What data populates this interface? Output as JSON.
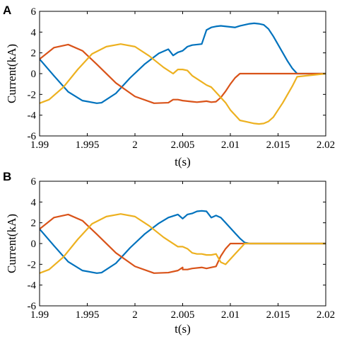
{
  "chart_data": [
    {
      "type": "line",
      "panel_label": "A",
      "xlabel": "t(s)",
      "ylabel": "Current(kA)",
      "xlim": [
        1.99,
        2.02
      ],
      "ylim": [
        -6,
        6
      ],
      "xticks": [
        1.99,
        1.995,
        2,
        2.005,
        2.01,
        2.015,
        2.02
      ],
      "xtick_labels": [
        "1.99",
        "1.995",
        "2",
        "2.005",
        "2.01",
        "2.015",
        "2.02"
      ],
      "yticks": [
        -6,
        -4,
        -2,
        0,
        2,
        4,
        6
      ],
      "ytick_labels": [
        "-6",
        "-4",
        "-2",
        "0",
        "2",
        "4",
        "6"
      ],
      "grid": false,
      "series": [
        {
          "color": "#0072BD",
          "x": [
            1.99,
            1.9915,
            1.993,
            1.9945,
            1.996,
            1.9965,
            1.998,
            1.9995,
            2.001,
            2.0025,
            2.0035,
            2.004,
            2.004,
            2.0045,
            2.005,
            2.0055,
            2.006,
            2.0065,
            2.007,
            2.0075,
            2.008,
            2.0085,
            2.009,
            2.0095,
            2.0105,
            2.011,
            2.0115,
            2.012,
            2.0125,
            2.013,
            2.0135,
            2.014,
            2.0145,
            2.015,
            2.0155,
            2.016,
            2.0165,
            2.017,
            2.02
          ],
          "y": [
            1.4,
            -0.2,
            -1.75,
            -2.6,
            -2.85,
            -2.8,
            -1.9,
            -0.4,
            0.9,
            1.95,
            2.35,
            1.75,
            1.75,
            2.05,
            2.2,
            2.6,
            2.75,
            2.8,
            2.85,
            4.2,
            4.45,
            4.55,
            4.6,
            4.55,
            4.45,
            4.6,
            4.7,
            4.8,
            4.85,
            4.8,
            4.7,
            4.3,
            3.6,
            2.8,
            2.0,
            1.2,
            0.5,
            0.0,
            0.0
          ]
        },
        {
          "color": "#D95319",
          "x": [
            1.99,
            1.9915,
            1.993,
            1.9945,
            1.996,
            1.998,
            2.0,
            2.002,
            2.0035,
            2.004,
            2.0045,
            2.005,
            2.0055,
            2.006,
            2.0065,
            2.007,
            2.0075,
            2.008,
            2.0085,
            2.009,
            2.0095,
            2.01,
            2.0105,
            2.011,
            2.0115,
            2.012,
            2.02
          ],
          "y": [
            1.4,
            2.5,
            2.8,
            2.2,
            0.9,
            -0.9,
            -2.2,
            -2.85,
            -2.8,
            -2.5,
            -2.5,
            -2.6,
            -2.65,
            -2.7,
            -2.75,
            -2.7,
            -2.65,
            -2.75,
            -2.7,
            -2.3,
            -1.7,
            -1.0,
            -0.4,
            0.0,
            0.0,
            0.0,
            0.0
          ]
        },
        {
          "color": "#EDB120",
          "x": [
            1.99,
            1.991,
            1.9925,
            1.994,
            1.9955,
            1.997,
            1.9985,
            2.0,
            2.0015,
            2.003,
            2.004,
            2.0045,
            2.005,
            2.0055,
            2.006,
            2.0065,
            2.007,
            2.0075,
            2.008,
            2.0085,
            2.009,
            2.0095,
            2.01,
            2.0105,
            2.011,
            2.0115,
            2.012,
            2.0125,
            2.013,
            2.0135,
            2.014,
            2.0145,
            2.015,
            2.0155,
            2.016,
            2.0165,
            2.017,
            2.02
          ],
          "y": [
            -2.85,
            -2.5,
            -1.3,
            0.4,
            1.9,
            2.6,
            2.85,
            2.6,
            1.7,
            0.6,
            0.0,
            0.4,
            0.4,
            0.3,
            -0.2,
            -0.5,
            -0.8,
            -1.1,
            -1.3,
            -1.8,
            -2.3,
            -2.8,
            -3.5,
            -4.0,
            -4.5,
            -4.6,
            -4.7,
            -4.8,
            -4.85,
            -4.8,
            -4.6,
            -4.2,
            -3.5,
            -2.8,
            -2.0,
            -1.2,
            -0.3,
            0.0
          ]
        }
      ]
    },
    {
      "type": "line",
      "panel_label": "B",
      "xlabel": "t(s)",
      "ylabel": "Current(kA)",
      "xlim": [
        1.99,
        2.02
      ],
      "ylim": [
        -6,
        6
      ],
      "xticks": [
        1.99,
        1.995,
        2,
        2.005,
        2.01,
        2.015,
        2.02
      ],
      "xtick_labels": [
        "1.99",
        "1.995",
        "2",
        "2.005",
        "2.01",
        "2.015",
        "2.02"
      ],
      "yticks": [
        -6,
        -4,
        -2,
        0,
        2,
        4,
        6
      ],
      "ytick_labels": [
        "-6",
        "-4",
        "-2",
        "0",
        "2",
        "4",
        "6"
      ],
      "grid": false,
      "series": [
        {
          "color": "#0072BD",
          "x": [
            1.99,
            1.9915,
            1.993,
            1.9945,
            1.996,
            1.9965,
            1.998,
            1.9995,
            2.001,
            2.0025,
            2.0035,
            2.0045,
            2.005,
            2.0055,
            2.006,
            2.0065,
            2.007,
            2.0075,
            2.008,
            2.0085,
            2.009,
            2.0095,
            2.01,
            2.0105,
            2.011,
            2.0115,
            2.012,
            2.02
          ],
          "y": [
            1.4,
            -0.2,
            -1.75,
            -2.6,
            -2.85,
            -2.8,
            -1.9,
            -0.4,
            0.9,
            1.95,
            2.5,
            2.8,
            2.4,
            2.8,
            2.9,
            3.1,
            3.15,
            3.1,
            2.5,
            2.7,
            2.5,
            2.0,
            1.5,
            1.0,
            0.5,
            0.1,
            0.0,
            0.0
          ]
        },
        {
          "color": "#D95319",
          "x": [
            1.99,
            1.9915,
            1.993,
            1.9945,
            1.996,
            1.998,
            2.0,
            2.002,
            2.0035,
            2.0045,
            2.005,
            2.005,
            2.0055,
            2.006,
            2.007,
            2.0075,
            2.008,
            2.0085,
            2.009,
            2.0095,
            2.01,
            2.0105,
            2.011,
            2.012,
            2.02
          ],
          "y": [
            1.4,
            2.5,
            2.8,
            2.2,
            0.9,
            -0.9,
            -2.2,
            -2.85,
            -2.8,
            -2.6,
            -2.3,
            -2.5,
            -2.5,
            -2.4,
            -2.3,
            -2.4,
            -2.3,
            -2.2,
            -1.2,
            -0.5,
            0.0,
            0.0,
            0.0,
            0.0,
            0.0
          ]
        },
        {
          "color": "#EDB120",
          "x": [
            1.99,
            1.991,
            1.9925,
            1.994,
            1.9955,
            1.997,
            1.9985,
            2.0,
            2.0015,
            2.003,
            2.0045,
            2.005,
            2.0055,
            2.006,
            2.0065,
            2.007,
            2.0075,
            2.008,
            2.0085,
            2.009,
            2.0095,
            2.01,
            2.0105,
            2.011,
            2.0115,
            2.012,
            2.02
          ],
          "y": [
            -2.85,
            -2.5,
            -1.3,
            0.4,
            1.9,
            2.6,
            2.85,
            2.6,
            1.7,
            0.6,
            -0.3,
            -0.3,
            -0.5,
            -0.9,
            -1.0,
            -1.0,
            -1.1,
            -1.1,
            -1.0,
            -1.8,
            -2.0,
            -1.5,
            -1.0,
            -0.5,
            0.0,
            0.0,
            0.0
          ]
        }
      ]
    }
  ]
}
